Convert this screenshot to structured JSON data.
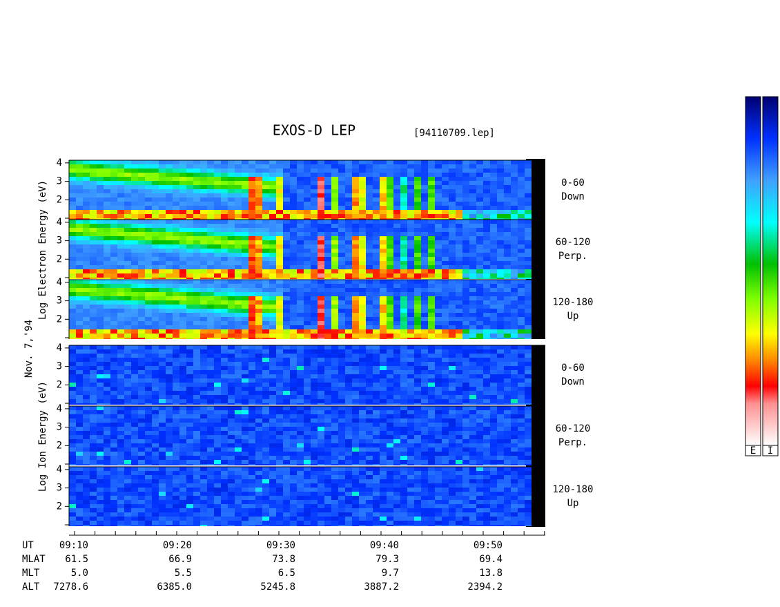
{
  "header": {
    "title": "EXOS-D LEP",
    "file": "[94110709.lep]",
    "date": "Nov. 7,'94"
  },
  "electron": {
    "axis_label": "Log  Electron  Energy (eV)",
    "panels": [
      {
        "angle": "0-60",
        "direction": "Down"
      },
      {
        "angle": "60-120",
        "direction": "Perp."
      },
      {
        "angle": "120-180",
        "direction": "Up"
      }
    ]
  },
  "ion": {
    "axis_label": "Log  Ion  Energy (eV)",
    "panels": [
      {
        "angle": "0-60",
        "direction": "Down"
      },
      {
        "angle": "60-120",
        "direction": "Perp."
      },
      {
        "angle": "120-180",
        "direction": "Up"
      }
    ]
  },
  "energy_ticks": [
    4,
    3,
    2
  ],
  "ephemeris": {
    "rows": [
      [
        "UT",
        "09:10",
        "09:20",
        "09:30",
        "09:40",
        "09:50"
      ],
      [
        "MLAT",
        "61.5",
        "66.9",
        "73.8",
        "79.3",
        "69.4"
      ],
      [
        "MLT",
        "5.0",
        "5.5",
        "6.5",
        "9.7",
        "13.8"
      ],
      [
        "ALT",
        "7278.6",
        "6385.0",
        "5245.8",
        "3887.2",
        "2394.2"
      ]
    ]
  },
  "colorbar_labels": [
    "E",
    "I"
  ]
}
